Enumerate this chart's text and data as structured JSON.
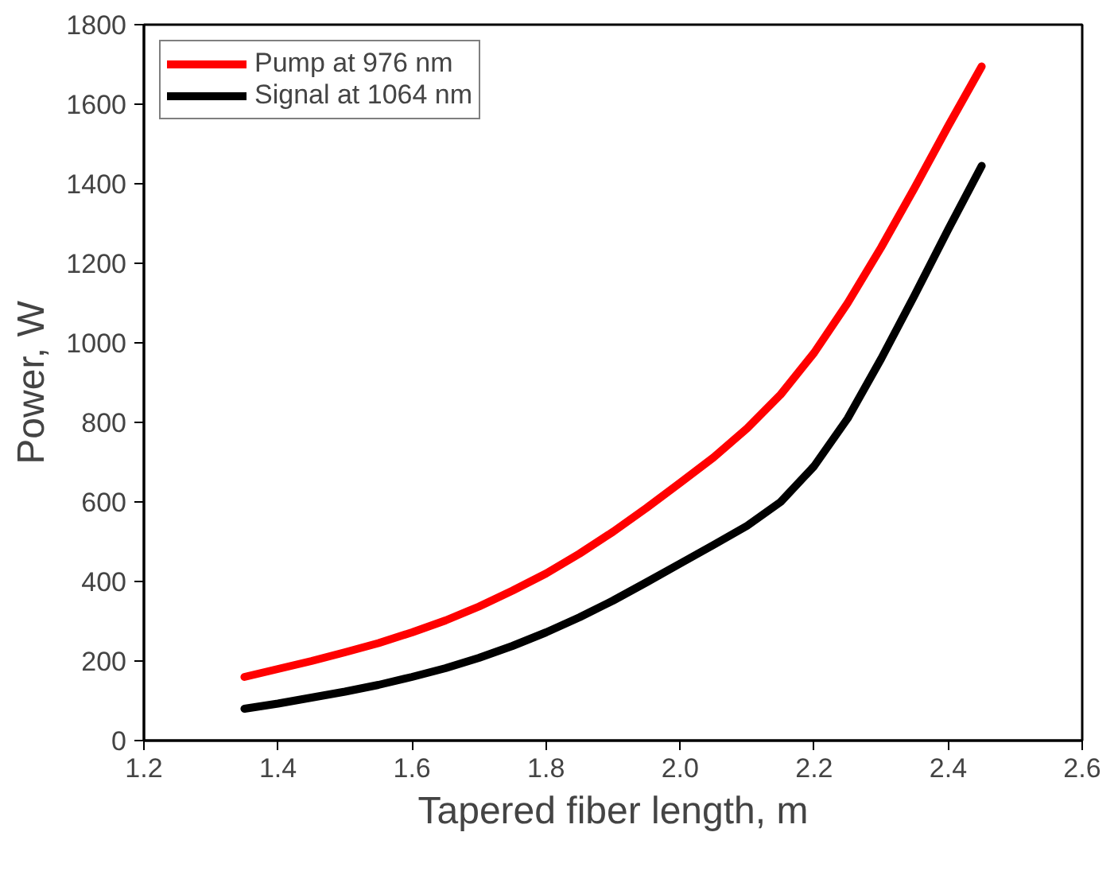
{
  "chart_data": {
    "type": "line",
    "xlabel": "Tapered fiber length, m",
    "ylabel": "Power, W",
    "x": [
      1.35,
      1.4,
      1.45,
      1.5,
      1.55,
      1.6,
      1.65,
      1.7,
      1.75,
      1.8,
      1.85,
      1.9,
      1.95,
      2.0,
      2.05,
      2.1,
      2.15,
      2.2,
      2.25,
      2.3,
      2.35,
      2.4,
      2.45
    ],
    "series": [
      {
        "name": "Pump at 976 nm",
        "color": "#ff0000",
        "values": [
          160,
          180,
          200,
          222,
          245,
          272,
          302,
          337,
          377,
          420,
          470,
          525,
          585,
          648,
          712,
          785,
          870,
          975,
          1100,
          1240,
          1390,
          1545,
          1695
        ]
      },
      {
        "name": "Signal at 1064 nm",
        "color": "#000000",
        "values": [
          80,
          93,
          108,
          123,
          140,
          160,
          182,
          208,
          238,
          272,
          310,
          352,
          398,
          445,
          492,
          540,
          600,
          690,
          810,
          960,
          1120,
          1285,
          1445
        ]
      }
    ],
    "xlim": [
      1.2,
      2.6
    ],
    "ylim": [
      0,
      1800
    ],
    "xticks": [
      {
        "value": 1.2,
        "label": "1.2"
      },
      {
        "value": 1.4,
        "label": "1.4"
      },
      {
        "value": 1.6,
        "label": "1.6"
      },
      {
        "value": 1.8,
        "label": "1.8"
      },
      {
        "value": 2.0,
        "label": "2.0"
      },
      {
        "value": 2.2,
        "label": "2.2"
      },
      {
        "value": 2.4,
        "label": "2.4"
      },
      {
        "value": 2.6,
        "label": "2.6"
      }
    ],
    "yticks": [
      0,
      200,
      400,
      600,
      800,
      1000,
      1200,
      1400,
      1600,
      1800
    ],
    "legend": "top left",
    "grid": false,
    "line_style": "solid"
  }
}
